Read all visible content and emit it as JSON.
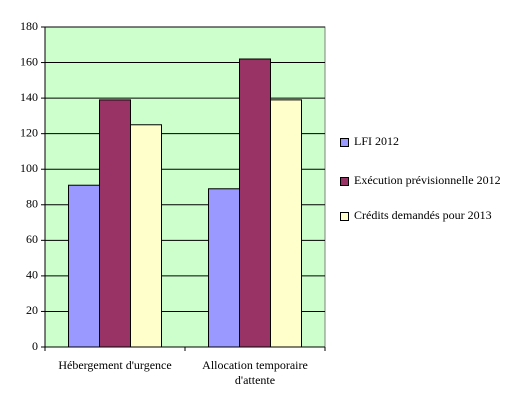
{
  "chart_data": {
    "type": "bar",
    "categories": [
      "Hébergement d'urgence",
      "Allocation temporaire d'attente"
    ],
    "series": [
      {
        "name": "LFI 2012",
        "color": "#9999ff",
        "values": [
          91,
          89
        ]
      },
      {
        "name": "Exécution prévisionnelle 2012",
        "color": "#993366",
        "values": [
          139,
          162
        ]
      },
      {
        "name": "Crédits demandés pour 2013",
        "color": "#ffffcc",
        "values": [
          125,
          139
        ]
      }
    ],
    "ylim": [
      0,
      180
    ],
    "yticks": [
      0,
      20,
      40,
      60,
      80,
      100,
      120,
      140,
      160,
      180
    ],
    "grid": true,
    "plot_background": "#ccffcc",
    "legend": "right"
  }
}
